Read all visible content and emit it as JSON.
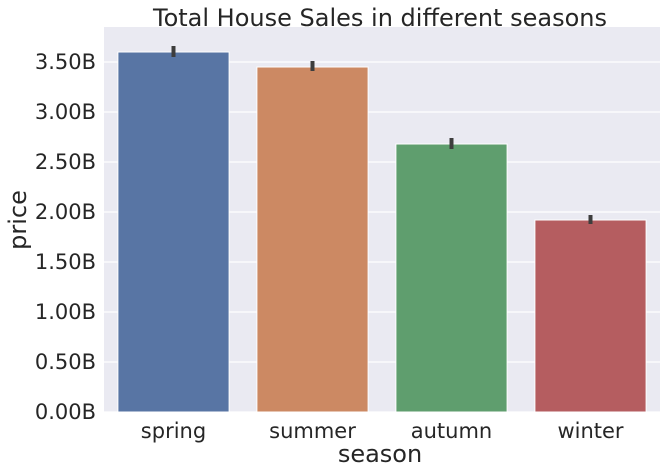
{
  "chart_data": {
    "type": "bar",
    "title": "Total House Sales in different seasons",
    "xlabel": "season",
    "ylabel": "price",
    "categories": [
      "spring",
      "summer",
      "autumn",
      "winter"
    ],
    "values": [
      3.6,
      3.45,
      2.68,
      1.92
    ],
    "error_low": [
      3.55,
      3.41,
      2.63,
      1.88
    ],
    "error_high": [
      3.66,
      3.51,
      2.74,
      1.97
    ],
    "ylim": [
      0,
      3.85
    ],
    "yticks": [
      0.0,
      0.5,
      1.0,
      1.5,
      2.0,
      2.5,
      3.0,
      3.5
    ],
    "ytick_labels": [
      "0.00B",
      "0.50B",
      "1.00B",
      "1.50B",
      "2.00B",
      "2.50B",
      "3.00B",
      "3.50B"
    ],
    "colors": [
      "#5875a4",
      "#cc8963",
      "#5f9e6e",
      "#b55d60"
    ],
    "background_color": "#eaeaf2",
    "grid": true
  }
}
